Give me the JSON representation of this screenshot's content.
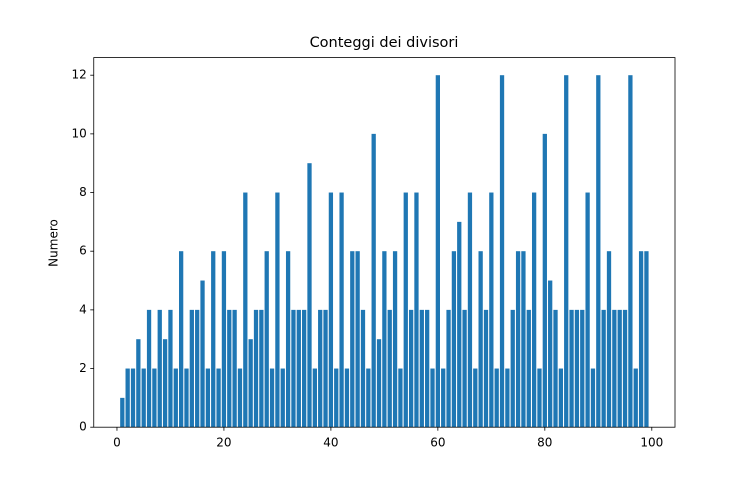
{
  "chart_data": {
    "type": "bar",
    "title": "Conteggi dei divisori",
    "y_label": "Numero",
    "x": [
      1,
      2,
      3,
      4,
      5,
      6,
      7,
      8,
      9,
      10,
      11,
      12,
      13,
      14,
      15,
      16,
      17,
      18,
      19,
      20,
      21,
      22,
      23,
      24,
      25,
      26,
      27,
      28,
      29,
      30,
      31,
      32,
      33,
      34,
      35,
      36,
      37,
      38,
      39,
      40,
      41,
      42,
      43,
      44,
      45,
      46,
      47,
      48,
      49,
      50,
      51,
      52,
      53,
      54,
      55,
      56,
      57,
      58,
      59,
      60,
      61,
      62,
      63,
      64,
      65,
      66,
      67,
      68,
      69,
      70,
      71,
      72,
      73,
      74,
      75,
      76,
      77,
      78,
      79,
      80,
      81,
      82,
      83,
      84,
      85,
      86,
      87,
      88,
      89,
      90,
      91,
      92,
      93,
      94,
      95,
      96,
      97,
      98,
      99
    ],
    "values": [
      1,
      2,
      2,
      3,
      2,
      4,
      2,
      4,
      3,
      4,
      2,
      6,
      2,
      4,
      4,
      5,
      2,
      6,
      2,
      6,
      4,
      4,
      2,
      8,
      3,
      4,
      4,
      6,
      2,
      8,
      2,
      6,
      4,
      4,
      4,
      9,
      2,
      4,
      4,
      8,
      2,
      8,
      2,
      6,
      6,
      4,
      2,
      10,
      3,
      6,
      4,
      6,
      2,
      8,
      4,
      8,
      4,
      4,
      2,
      12,
      2,
      4,
      6,
      7,
      4,
      8,
      2,
      6,
      4,
      8,
      2,
      12,
      2,
      4,
      6,
      6,
      4,
      8,
      2,
      10,
      5,
      4,
      2,
      12,
      4,
      4,
      4,
      8,
      2,
      12,
      4,
      6,
      4,
      4,
      4,
      12,
      2,
      6,
      6
    ],
    "color": "#1f77b4",
    "bar_width": 0.8,
    "xlim": [
      -4.34,
      104.34
    ],
    "xticks": [
      0,
      20,
      40,
      60,
      80,
      100
    ],
    "ylim": [
      0,
      12.6
    ],
    "yticks": [
      0,
      2,
      4,
      6,
      8,
      10,
      12
    ]
  }
}
